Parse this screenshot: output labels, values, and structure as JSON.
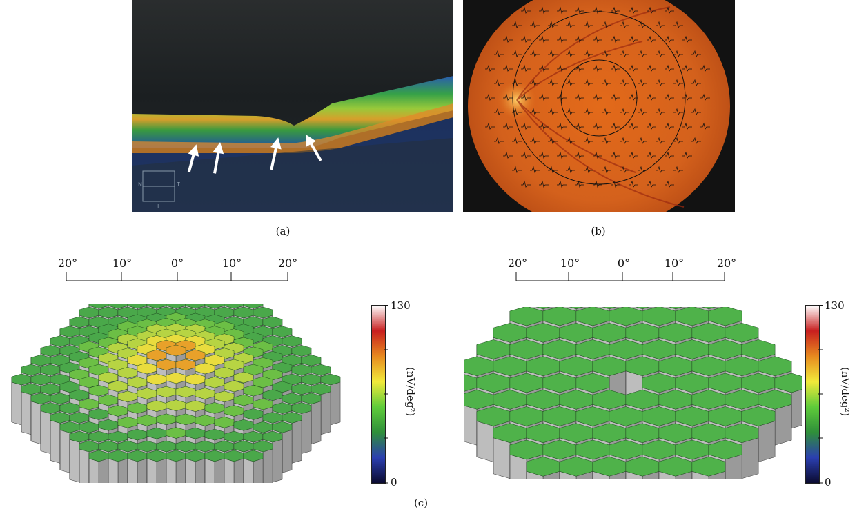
{
  "panels": {
    "a": {
      "caption": "(a)",
      "scan_markers": {
        "n": "N",
        "t": "T",
        "i": "I"
      },
      "arrow_count": 4
    },
    "b": {
      "caption": "(b)"
    },
    "c": {
      "caption": "(c)"
    }
  },
  "degree_scale": {
    "ticks": [
      "20°",
      "10°",
      "0°",
      "10°",
      "20°"
    ]
  },
  "colorbar": {
    "max_label": "130",
    "min_label": "0",
    "unit_label": "(nV/deg²)",
    "stops": [
      "#0b0b30",
      "#2b3fb0",
      "#2f8f3a",
      "#5fcc3a",
      "#f1e93a",
      "#e78a1f",
      "#c81f1f",
      "#ffffff"
    ]
  },
  "colors": {
    "fundus": "#d86a1e",
    "oct_background": "#1e2224",
    "hex_green": "#4fb24a",
    "hex_side": "#c8c8c8"
  }
}
